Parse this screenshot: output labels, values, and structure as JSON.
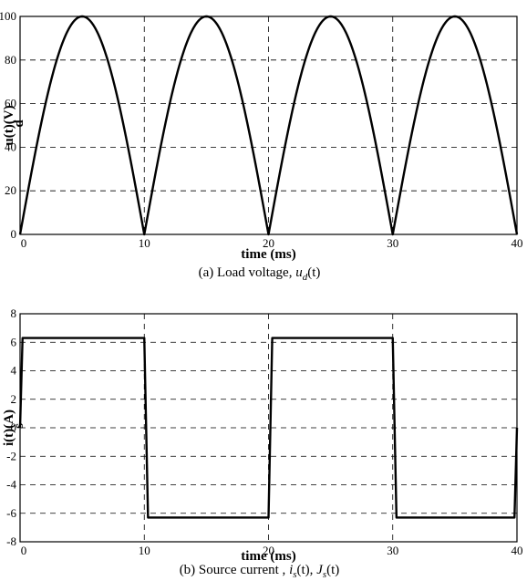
{
  "chart_data": [
    {
      "type": "line",
      "panel": "a",
      "xlabel": "time (ms)",
      "ylabel_main": "u(t)(V)",
      "ylabel_sub": "d",
      "xlim": [
        0,
        40
      ],
      "ylim": [
        0,
        100
      ],
      "xticks": [
        0,
        10,
        20,
        30,
        40
      ],
      "yticks": [
        0,
        20,
        40,
        60,
        80,
        100
      ],
      "grid": true,
      "caption": {
        "prefix": "(a)  Load voltage, ",
        "var": "u",
        "sub": "d",
        "suffix": "(t)"
      },
      "series": [
        {
          "description": "full-wave rectified sine, peak 100 V, period 10 ms",
          "x": [
            0,
            1,
            2,
            3,
            4,
            5,
            6,
            7,
            8,
            9,
            10,
            11,
            12,
            13,
            14,
            15,
            16,
            17,
            18,
            19,
            20,
            21,
            22,
            23,
            24,
            25,
            26,
            27,
            28,
            29,
            30,
            31,
            32,
            33,
            34,
            35,
            36,
            37,
            38,
            39,
            40
          ],
          "y": [
            0,
            31,
            59,
            81,
            95,
            100,
            95,
            81,
            59,
            31,
            0,
            31,
            59,
            81,
            95,
            100,
            95,
            81,
            59,
            31,
            0,
            31,
            59,
            81,
            95,
            100,
            95,
            81,
            59,
            31,
            0,
            31,
            59,
            81,
            95,
            100,
            95,
            81,
            59,
            31,
            0
          ]
        }
      ]
    },
    {
      "type": "line",
      "panel": "b",
      "xlabel": "time (ms)",
      "ylabel_main": "i(t)(A)",
      "ylabel_sub": "s",
      "xlim": [
        0,
        40
      ],
      "ylim": [
        -8,
        8
      ],
      "xticks": [
        0,
        10,
        20,
        30,
        40
      ],
      "yticks": [
        -8,
        -6,
        -4,
        -2,
        0,
        2,
        4,
        6,
        8
      ],
      "grid": true,
      "caption": {
        "prefix": "(b)  Source current , ",
        "var1": "i",
        "sub1": "s",
        "mid": "(t), ",
        "var2": "J",
        "sub2": "s",
        "suffix": "(t)"
      },
      "series": [
        {
          "description": "square wave current, amplitude about 6.3 A, period 20 ms",
          "x": [
            0,
            0.2,
            10,
            10.3,
            20,
            20.3,
            30,
            30.3,
            39.8,
            40
          ],
          "y": [
            0,
            6.3,
            6.3,
            -6.3,
            -6.3,
            6.3,
            6.3,
            -6.3,
            -6.3,
            0
          ]
        }
      ]
    }
  ]
}
